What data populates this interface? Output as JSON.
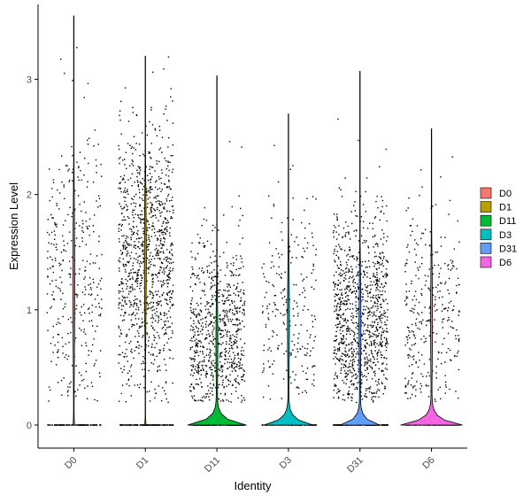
{
  "chart_data": {
    "type": "violin",
    "xlabel": "Identity",
    "ylabel": "Expression Level",
    "ylim": [
      -0.2,
      3.65
    ],
    "yticks": [
      0,
      1,
      2,
      3
    ],
    "grid": false,
    "legend_position": "right",
    "categories": [
      "D0",
      "D1",
      "D11",
      "D3",
      "D31",
      "D6"
    ],
    "series": [
      {
        "name": "D0",
        "color": "#F8766D",
        "max": 3.55,
        "zero_fraction": 0.6,
        "median_nonzero": 1.2,
        "spread": 0.75,
        "n_points": 900,
        "violin_peak_width": 0.02
      },
      {
        "name": "D1",
        "color": "#B79F00",
        "max": 3.2,
        "zero_fraction": 0.4,
        "median_nonzero": 1.45,
        "spread": 0.6,
        "n_points": 1800,
        "violin_peak_width": 0.02
      },
      {
        "name": "D11",
        "color": "#00BA38",
        "max": 3.03,
        "zero_fraction": 0.55,
        "median_nonzero": 0.7,
        "spread": 0.45,
        "n_points": 1700,
        "violin_peak_width": 0.9
      },
      {
        "name": "D3",
        "color": "#00BFC4",
        "max": 2.7,
        "zero_fraction": 0.7,
        "median_nonzero": 0.9,
        "spread": 0.55,
        "n_points": 800,
        "violin_peak_width": 0.75
      },
      {
        "name": "D31",
        "color": "#619CFF",
        "max": 3.07,
        "zero_fraction": 0.45,
        "median_nonzero": 0.85,
        "spread": 0.5,
        "n_points": 1900,
        "violin_peak_width": 0.6
      },
      {
        "name": "D6",
        "color": "#F564E3",
        "max": 2.57,
        "zero_fraction": 0.6,
        "median_nonzero": 0.9,
        "spread": 0.55,
        "n_points": 800,
        "violin_peak_width": 0.95
      }
    ]
  }
}
